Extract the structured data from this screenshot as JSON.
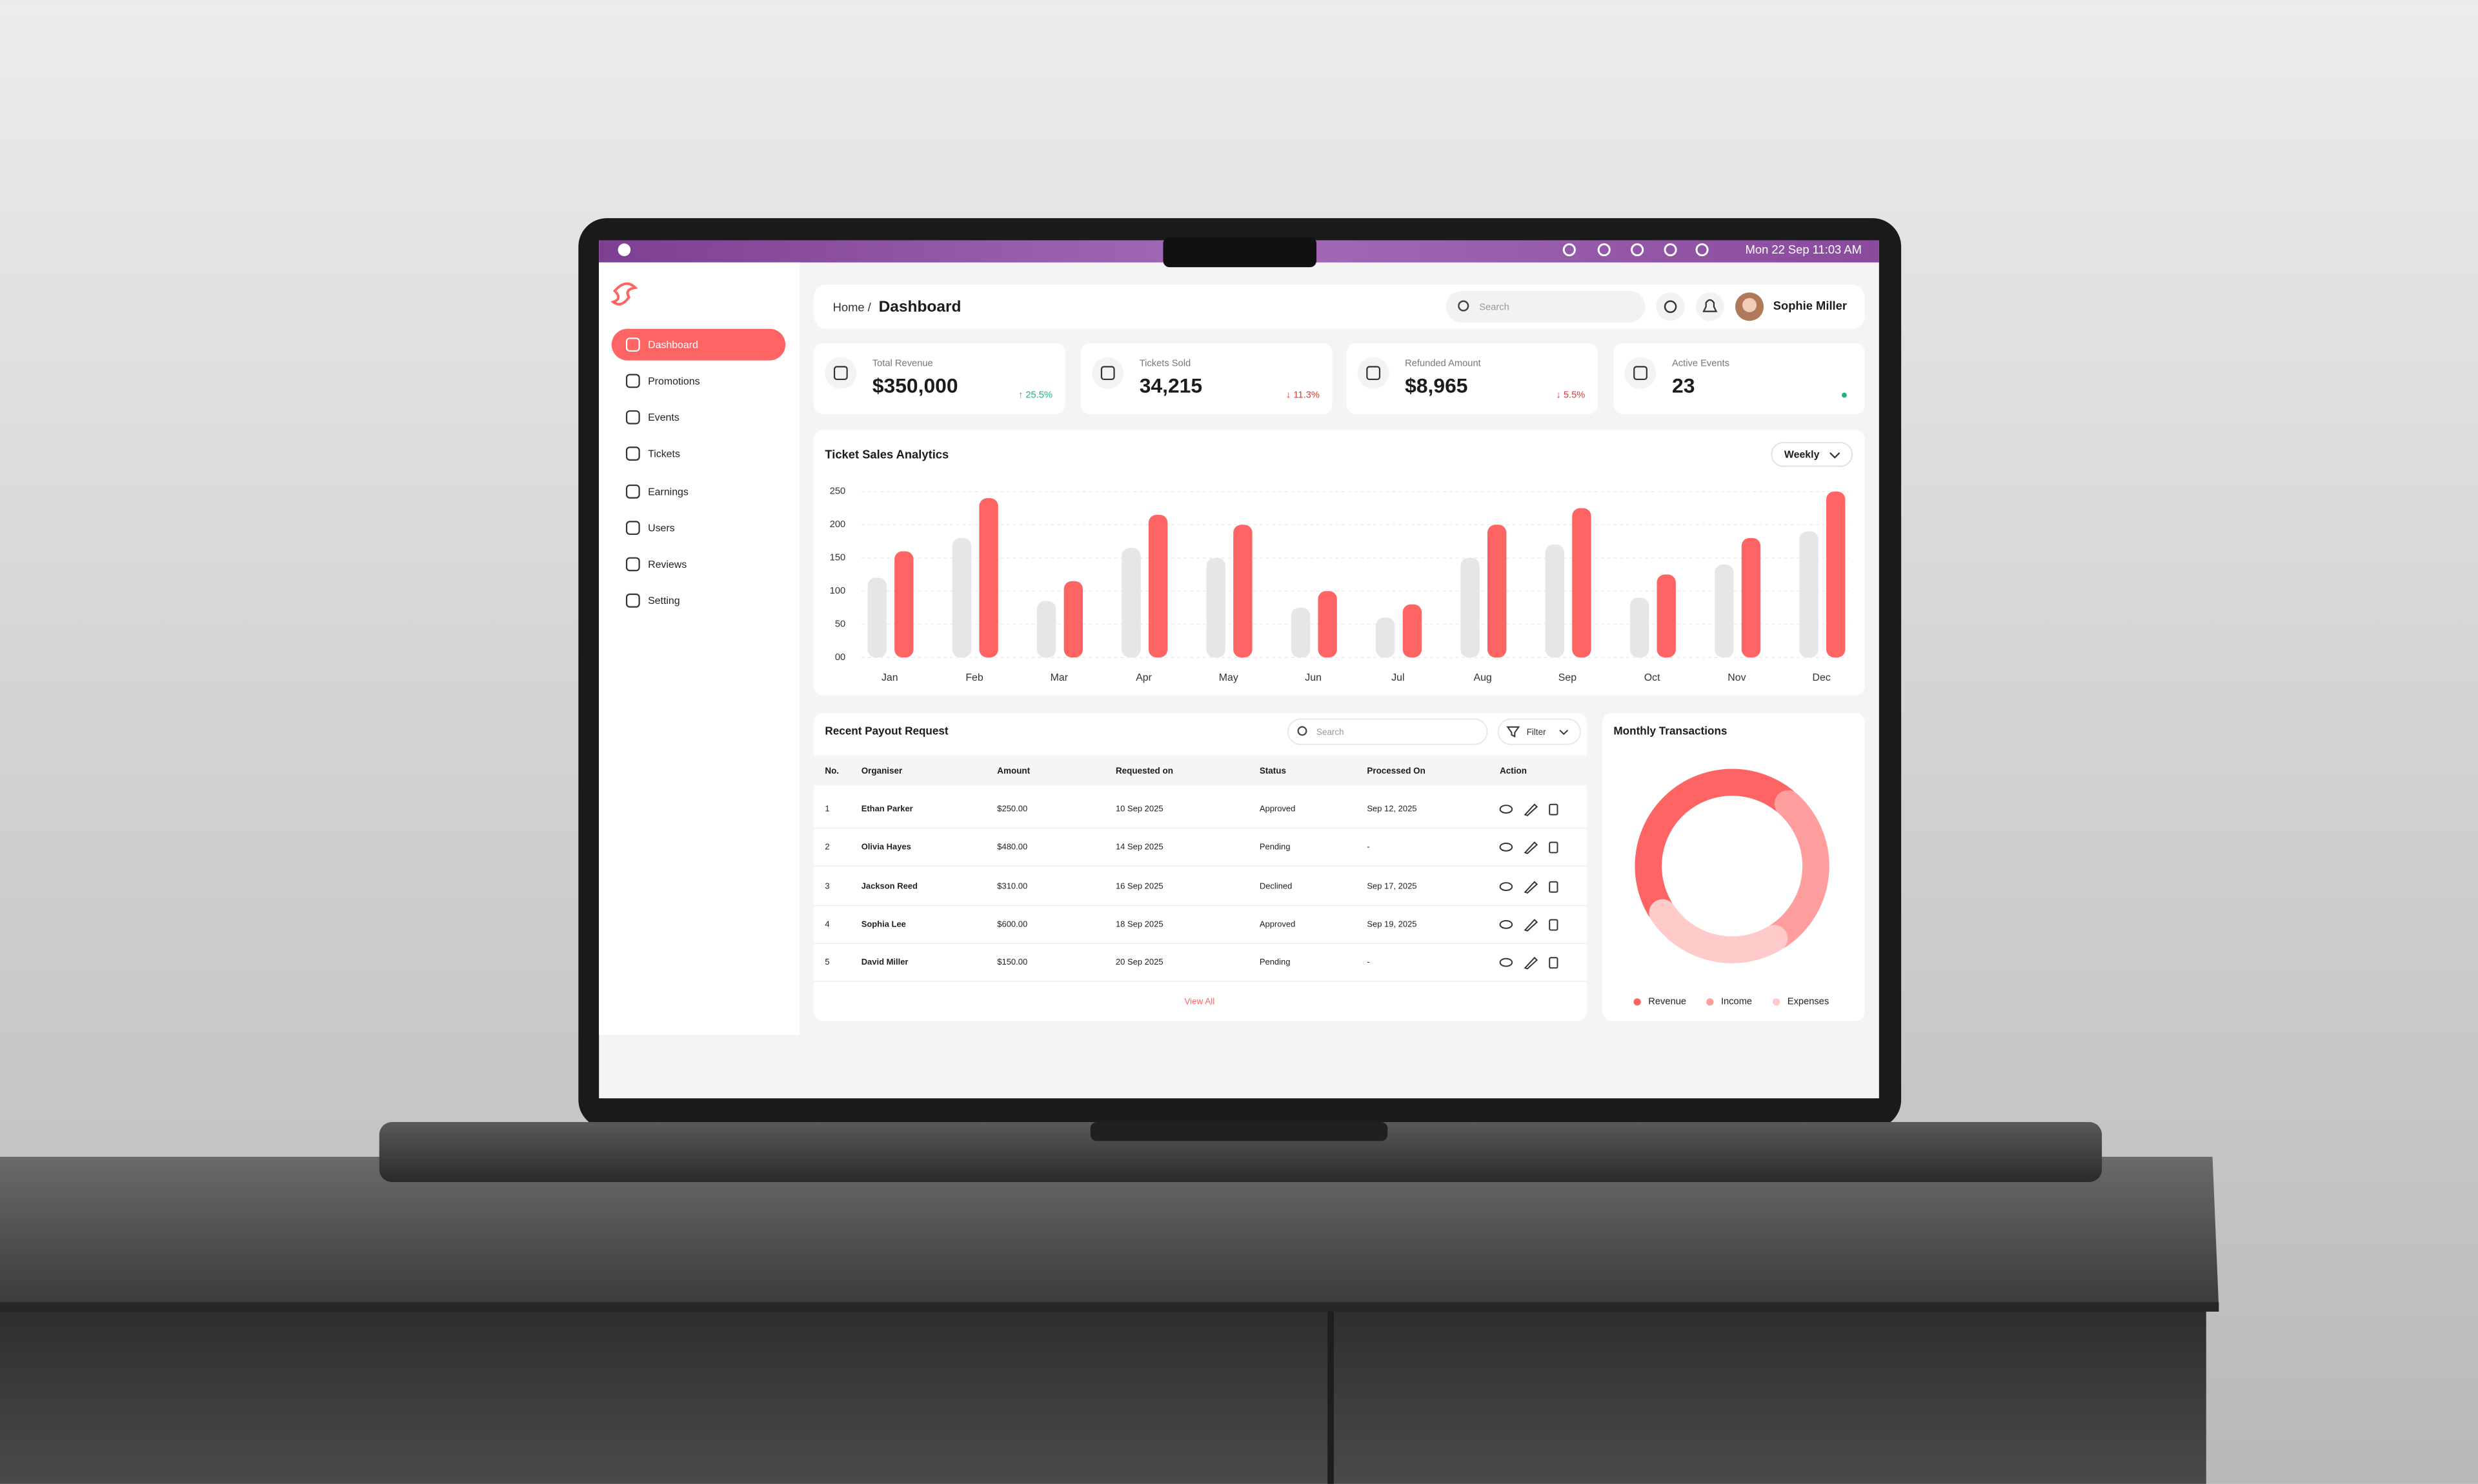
{
  "menu_bar": {
    "clock": "Mon 22 Sep 11:03 AM"
  },
  "sidebar": {
    "items": [
      "Dashboard",
      "Promotions",
      "Events",
      "Tickets",
      "Earnings",
      "Users",
      "Reviews",
      "Setting"
    ]
  },
  "header": {
    "breadcrumb": "Home /",
    "page": "Dashboard",
    "search_placeholder": "Search",
    "user": "Sophie Miller"
  },
  "stats": [
    {
      "label": "Total Revenue",
      "value": "$350,000",
      "trend": "↑ 25.5%",
      "trend_color": "#1fb57a"
    },
    {
      "label": "Tickets Sold",
      "value": "34,215",
      "trend": "↓ 11.3%",
      "trend_color": "#e53935"
    },
    {
      "label": "Refunded Amount",
      "value": "$8,965",
      "trend": "↓ 5.5%",
      "trend_color": "#e53935"
    },
    {
      "label": "Active Events",
      "value": "23",
      "dot_color": "#1fb57a"
    }
  ],
  "chart_data": [
    {
      "type": "bar",
      "title": "Ticket Sales Analytics",
      "control": "Weekly",
      "categories": [
        "Jan",
        "Feb",
        "Mar",
        "Apr",
        "May",
        "Jun",
        "Jul",
        "Aug",
        "Sep",
        "Oct",
        "Nov",
        "Dec"
      ],
      "series": [
        {
          "color": "#e6e6e6",
          "values": [
            120,
            180,
            85,
            165,
            150,
            75,
            60,
            150,
            170,
            90,
            140,
            190
          ]
        },
        {
          "color": "#ff6464",
          "values": [
            160,
            240,
            115,
            215,
            200,
            100,
            80,
            200,
            225,
            125,
            180,
            250
          ]
        }
      ],
      "ylim": [
        0,
        250
      ],
      "yticks": [
        {
          "value": 0,
          "label": "00"
        },
        50,
        100,
        150,
        200,
        250
      ],
      "grid": true
    },
    {
      "type": "donut",
      "title": "Monthly Transactions",
      "categories": [
        "Revenue",
        "Income",
        "Expenses"
      ],
      "values": [
        45,
        30,
        25
      ],
      "colors": [
        "#ff6464",
        "#ff9e9e",
        "#ffcaca"
      ]
    }
  ],
  "payouts": {
    "title": "Recent Payout Request",
    "search_placeholder": "Search",
    "filter": "Filter",
    "columns": [
      "No.",
      "Organiser",
      "Amount",
      "Requested on",
      "Status",
      "Processed On",
      "Action"
    ],
    "rows": [
      [
        "1",
        "Ethan Parker",
        "$250.00",
        "10 Sep 2025",
        "Approved",
        "Sep 12, 2025"
      ],
      [
        "2",
        "Olivia Hayes",
        "$480.00",
        "14 Sep 2025",
        "Pending",
        "-"
      ],
      [
        "3",
        "Jackson Reed",
        "$310.00",
        "16 Sep 2025",
        "Declined",
        "Sep 17, 2025"
      ],
      [
        "4",
        "Sophia Lee",
        "$600.00",
        "18 Sep 2025",
        "Approved",
        "Sep 19, 2025"
      ],
      [
        "5",
        "David Miller",
        "$150.00",
        "20 Sep 2025",
        "Pending",
        "-"
      ]
    ],
    "footer": "View All"
  }
}
